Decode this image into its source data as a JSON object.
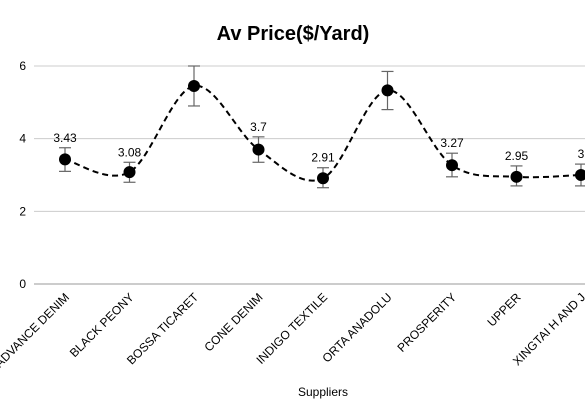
{
  "chart_data": {
    "type": "line",
    "title": "Av Price($/Yard)",
    "xlabel": "Suppliers",
    "ylabel": "",
    "ylim": [
      0,
      6
    ],
    "yticks": [
      0,
      2,
      4,
      6
    ],
    "grid": true,
    "legend": "none",
    "smoothed": true,
    "line_style": "dashed",
    "marker": "filled-circle",
    "color": "#000000",
    "error_bar_color": "#666666",
    "categories": [
      "ADVANCE DENIM",
      "BLACK PEONY",
      "BOSSA TICARET",
      "CONE DENIM",
      "INDIGO TEXTILE",
      "ORTA ANADOLU",
      "PROSPERITY",
      "UPPER",
      "XINGTAI H AND J"
    ],
    "values": [
      3.43,
      3.08,
      5.45,
      3.7,
      2.91,
      5.33,
      3.27,
      2.95,
      3.0
    ],
    "data_labels": [
      "3.43",
      "3.08",
      "",
      "3.7",
      "2.91",
      "",
      "3.27",
      "2.95",
      "3"
    ],
    "error_bars": [
      [
        3.1,
        3.75
      ],
      [
        2.8,
        3.35
      ],
      [
        4.9,
        6.0
      ],
      [
        3.35,
        4.05
      ],
      [
        2.65,
        3.2
      ],
      [
        4.8,
        5.85
      ],
      [
        2.95,
        3.6
      ],
      [
        2.7,
        3.25
      ],
      [
        2.7,
        3.3
      ]
    ]
  }
}
